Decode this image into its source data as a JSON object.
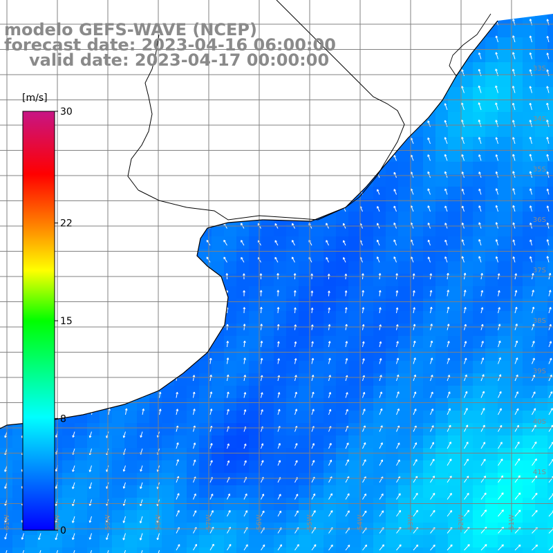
{
  "title": {
    "model": "modelo GEFS-WAVE (NCEP)",
    "forecast": "forecast date: 2023-04-16 06:00:00",
    "valid": "valid date: 2023-04-17 00:00:00"
  },
  "colorbar": {
    "unit": "[m/s]",
    "ticks": [
      {
        "value": 30,
        "label": "30"
      },
      {
        "value": 22,
        "label": "22"
      },
      {
        "value": 15,
        "label": "15"
      },
      {
        "value": 8,
        "label": "8"
      },
      {
        "value": 0,
        "label": "0"
      }
    ],
    "colors": [
      "#0000ff",
      "#0088ff",
      "#00ffff",
      "#00ff00",
      "#ffff00",
      "#ff8000",
      "#ff0000",
      "#c71585"
    ]
  },
  "grid": {
    "lat_labels": [
      "33S",
      "34S",
      "35S",
      "36S",
      "37S",
      "38S",
      "39S",
      "40S",
      "41S"
    ],
    "lon_labels": [
      "61W",
      "60W",
      "59W",
      "58W",
      "57W",
      "56W",
      "55W",
      "54W",
      "53W",
      "52W",
      "51W"
    ]
  },
  "wind_field": {
    "description_free": true,
    "vector_color": "#ffffff",
    "land_color": "#ffffff",
    "coast_color": "#000000",
    "grid_color": "#808080"
  }
}
